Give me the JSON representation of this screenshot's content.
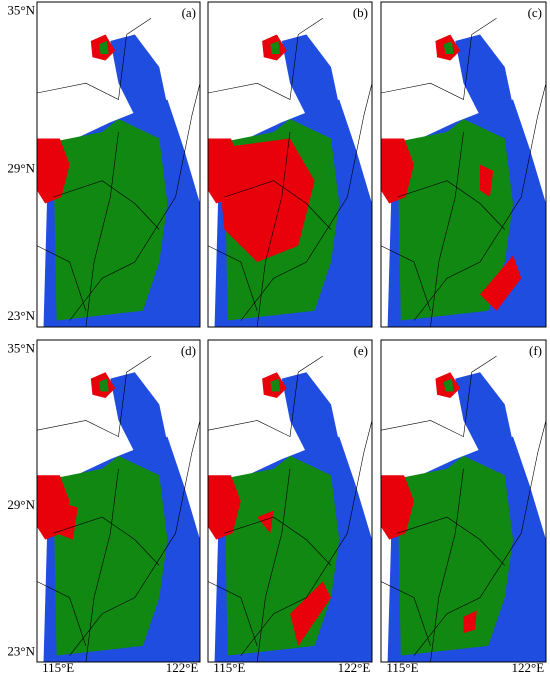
{
  "panels": [
    {
      "label": "(a)"
    },
    {
      "label": "(b)"
    },
    {
      "label": "(c)"
    },
    {
      "label": "(d)"
    },
    {
      "label": "(e)"
    },
    {
      "label": "(f)"
    }
  ],
  "row_labels": [
    [
      "35°N",
      "29°N",
      "23°N"
    ],
    [
      "35°N",
      "29°N",
      "23°N"
    ]
  ],
  "column_labels": [
    [
      "115°E",
      "122°E"
    ],
    [
      "115°E",
      "122°E"
    ],
    [
      "115°E",
      "122°E"
    ]
  ]
}
